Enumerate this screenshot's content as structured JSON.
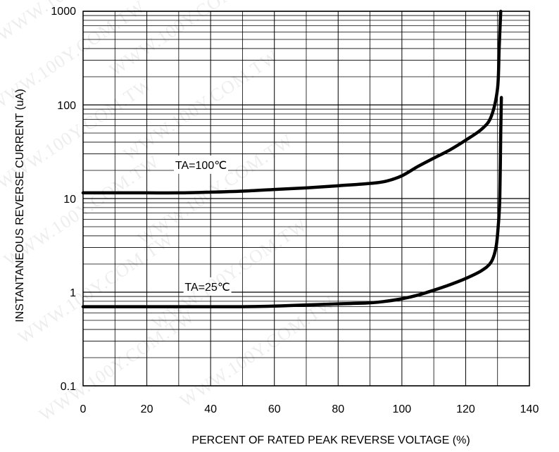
{
  "chart_data": {
    "type": "line",
    "xlabel": "PERCENT OF RATED PEAK REVERSE VOLTAGE (%)",
    "ylabel": "INSTANTANEOUS REVERSE CURRENT (uA)",
    "xlim": [
      0,
      140
    ],
    "ylim": [
      0.1,
      1000
    ],
    "yscale": "log",
    "grid": true,
    "x_ticks": [
      "0",
      "20",
      "40",
      "60",
      "80",
      "100",
      "120",
      "140"
    ],
    "y_ticks": [
      "0.1",
      "1",
      "10",
      "100",
      "1000"
    ],
    "series": [
      {
        "name": "TA=100℃",
        "x": [
          0,
          10,
          20,
          30,
          40,
          50,
          60,
          70,
          80,
          90,
          95,
          100,
          105,
          110,
          115,
          120,
          125,
          128,
          130,
          130.5,
          131
        ],
        "y": [
          11.5,
          11.5,
          11.5,
          11.5,
          11.7,
          12.0,
          12.5,
          13.0,
          13.7,
          14.5,
          15.3,
          17.5,
          22,
          27,
          33,
          42,
          55,
          75,
          150,
          400,
          1000
        ]
      },
      {
        "name": "TA=25℃",
        "x": [
          0,
          10,
          20,
          30,
          40,
          50,
          60,
          70,
          80,
          90,
          95,
          100,
          105,
          110,
          115,
          120,
          125,
          128,
          129.5,
          130.2,
          130.7,
          131,
          131.2
        ],
        "y": [
          0.7,
          0.7,
          0.7,
          0.7,
          0.7,
          0.7,
          0.71,
          0.73,
          0.75,
          0.77,
          0.8,
          0.85,
          0.93,
          1.05,
          1.2,
          1.4,
          1.7,
          2.1,
          3.0,
          5,
          10,
          50,
          120
        ]
      }
    ],
    "annotations": [
      {
        "text": "TA=100℃",
        "series": 0
      },
      {
        "text": "TA=25℃",
        "series": 1
      }
    ]
  },
  "watermark": "WWW.100Y.COM.TW"
}
